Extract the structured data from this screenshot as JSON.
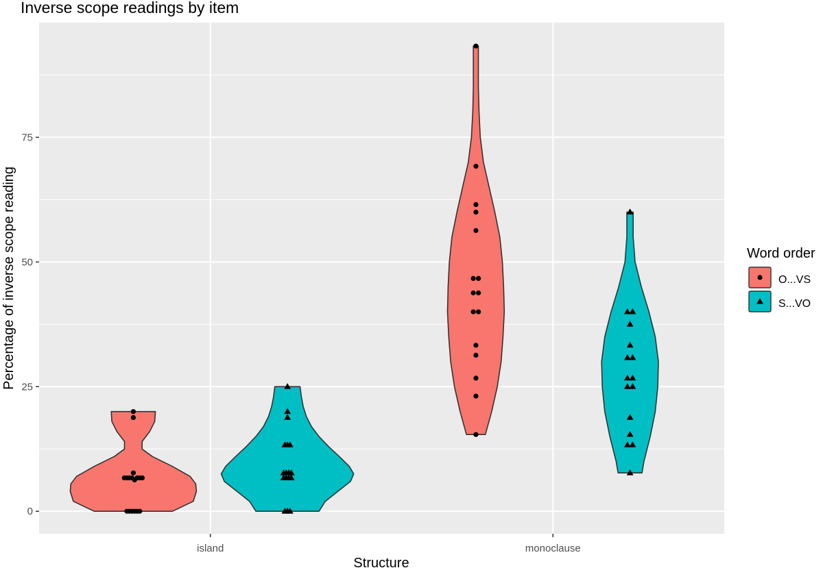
{
  "chart_data": {
    "type": "violin",
    "title": "Inverse scope readings by item",
    "xlabel": "Structure",
    "ylabel": "Percentage of inverse scope reading",
    "categories": [
      "island",
      "monoclause"
    ],
    "ylim": [
      -4.5,
      98
    ],
    "yticks": [
      0,
      25,
      50,
      75
    ],
    "grid": true,
    "legend": {
      "title": "Word order",
      "placement": "right",
      "entries": [
        {
          "name": "O...VS",
          "color": "#F8766D",
          "marker": "circle"
        },
        {
          "name": "S...VO",
          "color": "#00BFC4",
          "marker": "triangle"
        }
      ]
    },
    "series": [
      {
        "name": "O...VS",
        "color": "#F8766D",
        "marker": "circle",
        "groups": [
          {
            "category": "island",
            "points": [
              [
                0.2,
                0
              ],
              [
                0.6,
                0
              ],
              [
                1.0,
                0
              ],
              [
                -0.2,
                0
              ],
              [
                -0.6,
                0
              ],
              [
                -1.0,
                0
              ],
              [
                -1.4,
                6.7
              ],
              [
                -1.0,
                6.7
              ],
              [
                -0.6,
                6.7
              ],
              [
                -0.2,
                6.7
              ],
              [
                0.6,
                6.7
              ],
              [
                1.0,
                6.7
              ],
              [
                1.4,
                6.7
              ],
              [
                0.2,
                6.3
              ],
              [
                0.0,
                7.7
              ],
              [
                0.0,
                18.8
              ],
              [
                0.0,
                20.0
              ]
            ],
            "profile": [
              [
                0,
                0.62
              ],
              [
                2,
                0.95
              ],
              [
                4,
                1.0
              ],
              [
                5.5,
                0.99
              ],
              [
                7,
                0.9
              ],
              [
                9,
                0.62
              ],
              [
                11,
                0.3
              ],
              [
                12.5,
                0.14
              ],
              [
                14,
                0.14
              ],
              [
                16,
                0.26
              ],
              [
                18,
                0.34
              ],
              [
                20,
                0.35
              ]
            ]
          },
          {
            "category": "monoclause",
            "points": [
              [
                0.0,
                93.3
              ],
              [
                0.0,
                69.2
              ],
              [
                0.0,
                61.5
              ],
              [
                0.0,
                60.0
              ],
              [
                0.0,
                56.3
              ],
              [
                -0.4,
                46.7
              ],
              [
                0.4,
                46.7
              ],
              [
                -0.4,
                43.8
              ],
              [
                0.4,
                43.8
              ],
              [
                -0.4,
                40.0
              ],
              [
                0.4,
                40.0
              ],
              [
                0.0,
                33.3
              ],
              [
                0.0,
                31.3
              ],
              [
                0.0,
                26.7
              ],
              [
                0.0,
                23.1
              ],
              [
                0.0,
                15.4
              ]
            ],
            "profile": [
              [
                15.4,
                0.15
              ],
              [
                20,
                0.25
              ],
              [
                25,
                0.34
              ],
              [
                30,
                0.4
              ],
              [
                35,
                0.43
              ],
              [
                40,
                0.45
              ],
              [
                45,
                0.44
              ],
              [
                50,
                0.42
              ],
              [
                55,
                0.38
              ],
              [
                60,
                0.3
              ],
              [
                65,
                0.21
              ],
              [
                70,
                0.12
              ],
              [
                75,
                0.07
              ],
              [
                80,
                0.05
              ],
              [
                85,
                0.04
              ],
              [
                90,
                0.04
              ],
              [
                93.3,
                0.04
              ]
            ]
          }
        ]
      },
      {
        "name": "S...VO",
        "color": "#00BFC4",
        "marker": "triangle",
        "groups": [
          {
            "category": "island",
            "points": [
              [
                -0.4,
                0
              ],
              [
                0.0,
                0
              ],
              [
                0.4,
                0
              ],
              [
                -0.6,
                6.7
              ],
              [
                -0.2,
                6.7
              ],
              [
                0.2,
                6.7
              ],
              [
                0.6,
                6.7
              ],
              [
                -0.6,
                7.7
              ],
              [
                -0.2,
                7.7
              ],
              [
                0.2,
                7.7
              ],
              [
                0.6,
                7.7
              ],
              [
                -0.4,
                13.3
              ],
              [
                0.0,
                13.3
              ],
              [
                0.4,
                13.3
              ],
              [
                0.0,
                18.8
              ],
              [
                0.0,
                20.0
              ],
              [
                0.0,
                25.0
              ]
            ],
            "profile": [
              [
                0,
                0.5
              ],
              [
                2,
                0.6
              ],
              [
                4,
                0.8
              ],
              [
                6,
                1.0
              ],
              [
                7.5,
                1.05
              ],
              [
                9,
                0.98
              ],
              [
                11,
                0.82
              ],
              [
                13,
                0.65
              ],
              [
                15,
                0.5
              ],
              [
                17,
                0.38
              ],
              [
                19,
                0.3
              ],
              [
                21,
                0.25
              ],
              [
                23,
                0.22
              ],
              [
                25,
                0.2
              ]
            ]
          },
          {
            "category": "monoclause",
            "points": [
              [
                0.0,
                60.0
              ],
              [
                -0.4,
                40.0
              ],
              [
                0.4,
                40.0
              ],
              [
                0.0,
                37.5
              ],
              [
                0.0,
                33.3
              ],
              [
                -0.4,
                30.8
              ],
              [
                0.4,
                30.8
              ],
              [
                -0.4,
                26.7
              ],
              [
                0.4,
                26.7
              ],
              [
                -0.4,
                25.0
              ],
              [
                0.4,
                25.0
              ],
              [
                0.0,
                18.8
              ],
              [
                0.0,
                15.4
              ],
              [
                -0.4,
                13.3
              ],
              [
                0.4,
                13.3
              ],
              [
                0.0,
                7.7
              ]
            ],
            "profile": [
              [
                7.7,
                0.19
              ],
              [
                10,
                0.22
              ],
              [
                15,
                0.32
              ],
              [
                20,
                0.4
              ],
              [
                25,
                0.44
              ],
              [
                30,
                0.45
              ],
              [
                35,
                0.4
              ],
              [
                40,
                0.3
              ],
              [
                45,
                0.18
              ],
              [
                50,
                0.08
              ],
              [
                55,
                0.05
              ],
              [
                60,
                0.05
              ]
            ]
          }
        ]
      }
    ]
  }
}
